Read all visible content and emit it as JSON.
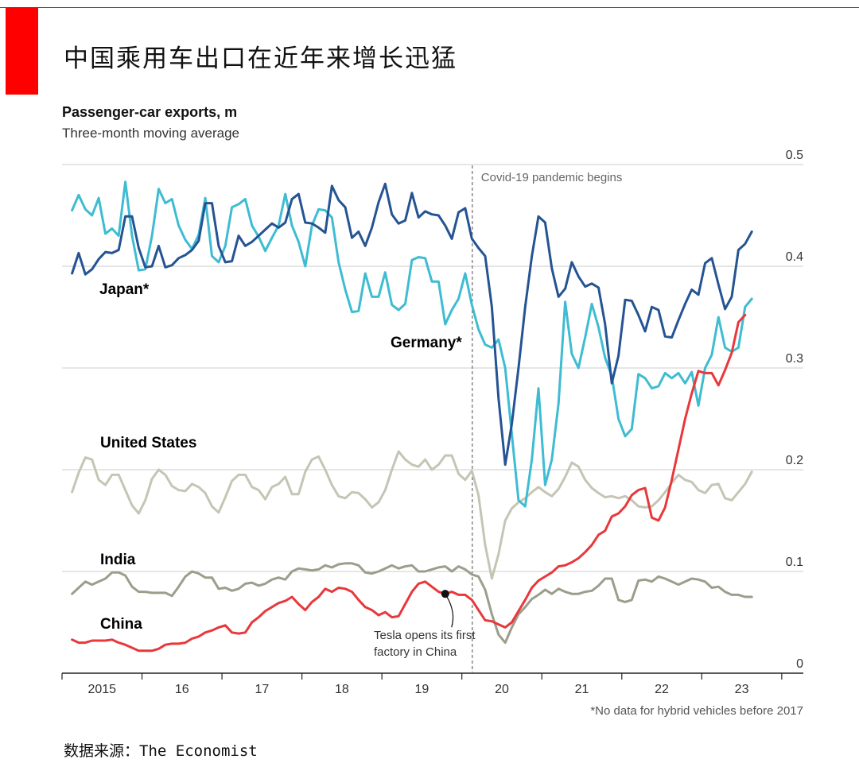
{
  "page": {
    "title": "中国乘用车出口在近年来增长迅猛",
    "source": "数据来源：The Economist"
  },
  "colors": {
    "brand_red": "#ff0000",
    "japan": "#255393",
    "germany": "#3ebcd2",
    "united_states": "#c5c5b5",
    "india": "#9d9d8c",
    "china": "#e8383b",
    "grid": "#cccccc"
  },
  "chart_data": {
    "type": "line",
    "title": "Passenger-car exports, m",
    "subtitle": "Three-month moving average",
    "footnote": "*No data for hybrid vehicles before 2017",
    "x_start": 2014.625,
    "x_step_months": 1,
    "xlim": [
      2014.5,
      2023.77
    ],
    "ylim": [
      0,
      0.5
    ],
    "yticks": [
      0,
      0.1,
      0.2,
      0.3,
      0.4,
      0.5
    ],
    "ytick_labels": [
      "0",
      "0.1",
      "0.2",
      "0.3",
      "0.4",
      "0.5"
    ],
    "xtick_labels": [
      "2015",
      "16",
      "17",
      "18",
      "19",
      "20",
      "21",
      "22",
      "23"
    ],
    "xtick_positions": [
      2015,
      2016,
      2017,
      2018,
      2019,
      2020,
      2021,
      2022,
      2023
    ],
    "grid": true,
    "legend": "inline labels",
    "series": [
      {
        "name": "Japan*",
        "key": "japan",
        "values": [
          0.393,
          0.413,
          0.392,
          0.397,
          0.407,
          0.414,
          0.413,
          0.416,
          0.449,
          0.449,
          0.418,
          0.399,
          0.4,
          0.42,
          0.399,
          0.401,
          0.408,
          0.411,
          0.416,
          0.425,
          0.462,
          0.462,
          0.42,
          0.404,
          0.405,
          0.43,
          0.42,
          0.424,
          0.43,
          0.436,
          0.442,
          0.438,
          0.443,
          0.466,
          0.471,
          0.443,
          0.442,
          0.438,
          0.433,
          0.479,
          0.465,
          0.458,
          0.428,
          0.434,
          0.42,
          0.438,
          0.463,
          0.481,
          0.451,
          0.442,
          0.445,
          0.472,
          0.448,
          0.454,
          0.451,
          0.45,
          0.44,
          0.427,
          0.453,
          0.457,
          0.427,
          0.418,
          0.41,
          0.36,
          0.27,
          0.205,
          0.245,
          0.3,
          0.36,
          0.41,
          0.449,
          0.443,
          0.398,
          0.37,
          0.378,
          0.404,
          0.39,
          0.38,
          0.383,
          0.379,
          0.343,
          0.285,
          0.312,
          0.367,
          0.366,
          0.352,
          0.336,
          0.36,
          0.357,
          0.331,
          0.33,
          0.347,
          0.363,
          0.377,
          0.372,
          0.403,
          0.408,
          0.382,
          0.358,
          0.37,
          0.416,
          0.422,
          0.434
        ]
      },
      {
        "name": "Germany*",
        "key": "germany",
        "values": [
          0.455,
          0.47,
          0.456,
          0.45,
          0.467,
          0.432,
          0.437,
          0.43,
          0.483,
          0.43,
          0.396,
          0.397,
          0.43,
          0.476,
          0.462,
          0.466,
          0.44,
          0.426,
          0.417,
          0.431,
          0.467,
          0.41,
          0.404,
          0.42,
          0.458,
          0.461,
          0.466,
          0.44,
          0.429,
          0.415,
          0.428,
          0.44,
          0.471,
          0.44,
          0.424,
          0.4,
          0.44,
          0.456,
          0.455,
          0.448,
          0.404,
          0.377,
          0.355,
          0.356,
          0.393,
          0.37,
          0.37,
          0.394,
          0.362,
          0.357,
          0.363,
          0.406,
          0.409,
          0.408,
          0.385,
          0.385,
          0.343,
          0.357,
          0.368,
          0.393,
          0.362,
          0.338,
          0.323,
          0.32,
          0.328,
          0.3,
          0.235,
          0.17,
          0.164,
          0.21,
          0.28,
          0.185,
          0.21,
          0.265,
          0.365,
          0.314,
          0.3,
          0.33,
          0.363,
          0.34,
          0.31,
          0.292,
          0.25,
          0.233,
          0.24,
          0.294,
          0.29,
          0.28,
          0.282,
          0.295,
          0.29,
          0.295,
          0.285,
          0.296,
          0.263,
          0.3,
          0.313,
          0.35,
          0.32,
          0.316,
          0.32,
          0.36,
          0.368
        ]
      },
      {
        "name": "United States",
        "key": "united_states",
        "values": [
          0.178,
          0.197,
          0.212,
          0.21,
          0.19,
          0.185,
          0.195,
          0.195,
          0.18,
          0.165,
          0.157,
          0.17,
          0.191,
          0.2,
          0.195,
          0.184,
          0.18,
          0.179,
          0.186,
          0.183,
          0.177,
          0.164,
          0.158,
          0.173,
          0.189,
          0.195,
          0.195,
          0.183,
          0.18,
          0.171,
          0.183,
          0.186,
          0.193,
          0.176,
          0.176,
          0.198,
          0.21,
          0.213,
          0.2,
          0.185,
          0.174,
          0.172,
          0.178,
          0.177,
          0.171,
          0.163,
          0.168,
          0.18,
          0.2,
          0.218,
          0.21,
          0.205,
          0.203,
          0.21,
          0.2,
          0.205,
          0.214,
          0.214,
          0.196,
          0.19,
          0.199,
          0.175,
          0.126,
          0.093,
          0.117,
          0.15,
          0.162,
          0.168,
          0.172,
          0.178,
          0.183,
          0.178,
          0.174,
          0.181,
          0.193,
          0.207,
          0.203,
          0.19,
          0.182,
          0.177,
          0.173,
          0.174,
          0.172,
          0.174,
          0.17,
          0.164,
          0.163,
          0.164,
          0.17,
          0.178,
          0.187,
          0.195,
          0.19,
          0.188,
          0.18,
          0.177,
          0.185,
          0.186,
          0.172,
          0.17,
          0.178,
          0.186,
          0.198
        ]
      },
      {
        "name": "India",
        "key": "india",
        "values": [
          0.078,
          0.084,
          0.09,
          0.087,
          0.09,
          0.093,
          0.099,
          0.099,
          0.096,
          0.085,
          0.08,
          0.08,
          0.079,
          0.079,
          0.079,
          0.076,
          0.085,
          0.095,
          0.1,
          0.098,
          0.094,
          0.094,
          0.083,
          0.084,
          0.081,
          0.083,
          0.088,
          0.089,
          0.086,
          0.088,
          0.092,
          0.094,
          0.092,
          0.1,
          0.103,
          0.102,
          0.101,
          0.102,
          0.106,
          0.104,
          0.107,
          0.108,
          0.108,
          0.106,
          0.099,
          0.098,
          0.1,
          0.103,
          0.106,
          0.103,
          0.105,
          0.106,
          0.1,
          0.1,
          0.102,
          0.104,
          0.105,
          0.1,
          0.105,
          0.102,
          0.097,
          0.095,
          0.082,
          0.058,
          0.038,
          0.03,
          0.045,
          0.058,
          0.065,
          0.073,
          0.077,
          0.082,
          0.078,
          0.083,
          0.08,
          0.078,
          0.078,
          0.08,
          0.081,
          0.086,
          0.093,
          0.093,
          0.072,
          0.07,
          0.072,
          0.091,
          0.092,
          0.09,
          0.095,
          0.093,
          0.09,
          0.087,
          0.09,
          0.093,
          0.092,
          0.09,
          0.084,
          0.085,
          0.08,
          0.077,
          0.077,
          0.075,
          0.075
        ]
      },
      {
        "name": "China",
        "key": "china",
        "values": [
          0.033,
          0.03,
          0.03,
          0.032,
          0.032,
          0.032,
          0.033,
          0.03,
          0.028,
          0.025,
          0.022,
          0.022,
          0.022,
          0.024,
          0.028,
          0.029,
          0.029,
          0.03,
          0.034,
          0.036,
          0.04,
          0.042,
          0.045,
          0.047,
          0.04,
          0.039,
          0.04,
          0.05,
          0.055,
          0.061,
          0.065,
          0.069,
          0.071,
          0.075,
          0.068,
          0.062,
          0.07,
          0.075,
          0.083,
          0.08,
          0.084,
          0.083,
          0.08,
          0.072,
          0.065,
          0.062,
          0.057,
          0.06,
          0.055,
          0.056,
          0.068,
          0.08,
          0.088,
          0.09,
          0.085,
          0.08,
          0.078,
          0.08,
          0.077,
          0.077,
          0.072,
          0.062,
          0.052,
          0.051,
          0.048,
          0.045,
          0.05,
          0.061,
          0.072,
          0.084,
          0.091,
          0.095,
          0.099,
          0.105,
          0.106,
          0.109,
          0.113,
          0.119,
          0.126,
          0.136,
          0.14,
          0.154,
          0.157,
          0.164,
          0.175,
          0.18,
          0.182,
          0.153,
          0.15,
          0.163,
          0.19,
          0.22,
          0.25,
          0.275,
          0.297,
          0.295,
          0.295,
          0.283,
          0.298,
          0.315,
          0.345,
          0.352
        ]
      }
    ],
    "annotations": {
      "covid": "Covid-19 pandemic begins",
      "tesla_line1": "Tesla opens its first",
      "tesla_line2": "factory in China"
    }
  }
}
